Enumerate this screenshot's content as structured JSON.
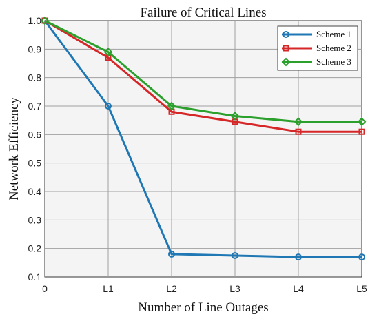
{
  "chart_data": {
    "type": "line",
    "title": "Failure of Critical Lines",
    "xlabel": "Number of Line Outages",
    "ylabel": "Network Efficiency",
    "categories": [
      "0",
      "L1",
      "L2",
      "L3",
      "L4",
      "L5"
    ],
    "ylim": [
      0.1,
      1.0
    ],
    "yticks": [
      "0.1",
      "0.2",
      "0.3",
      "0.4",
      "0.5",
      "0.6",
      "0.7",
      "0.8",
      "0.9",
      "1.0"
    ],
    "grid": true,
    "legend_position": "top-right",
    "series": [
      {
        "name": "Scheme 1",
        "color": "#1f77b4",
        "marker": "circle",
        "values": [
          1.0,
          0.7,
          0.18,
          0.175,
          0.17,
          0.17
        ]
      },
      {
        "name": "Scheme 2",
        "color": "#d62728",
        "marker": "square",
        "values": [
          1.0,
          0.87,
          0.68,
          0.645,
          0.61,
          0.61
        ]
      },
      {
        "name": "Scheme 3",
        "color": "#2ca02c",
        "marker": "diamond",
        "values": [
          1.0,
          0.89,
          0.7,
          0.665,
          0.645,
          0.645
        ]
      }
    ]
  }
}
